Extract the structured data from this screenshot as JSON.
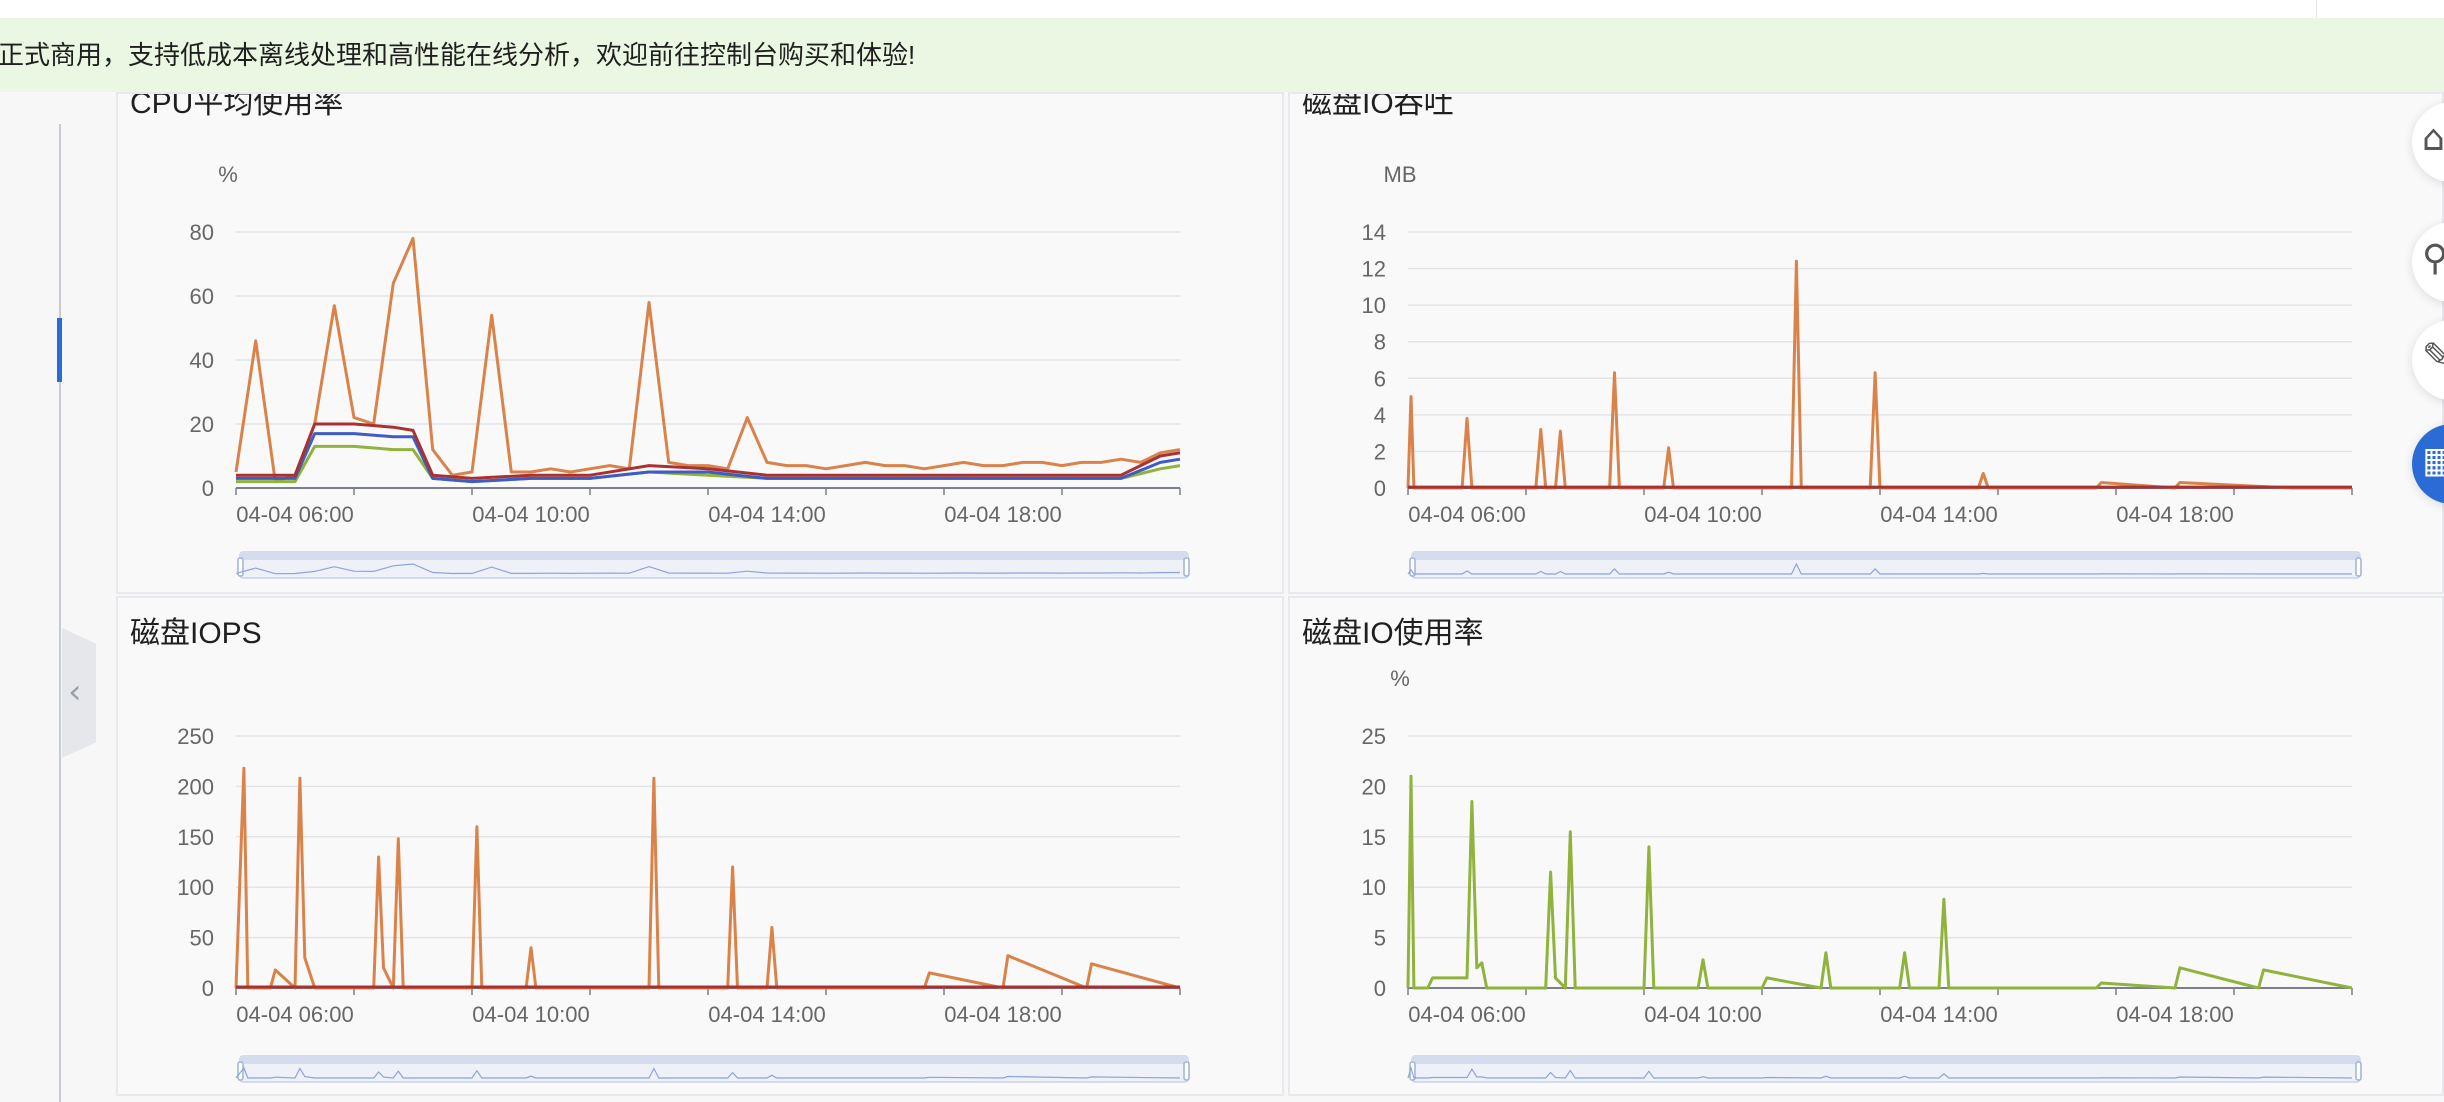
{
  "banner": {
    "text": "正式商用，支持低成本离线处理和高性能在线分析，欢迎前往控制台购买和体验!"
  },
  "panels": [
    {
      "title": "CPU平均使用率"
    },
    {
      "title": "磁盘IO吞吐"
    },
    {
      "title": "磁盘IOPS"
    },
    {
      "title": "磁盘IO使用率"
    }
  ],
  "right_tools": [
    "home-icon",
    "link-icon",
    "edit-icon",
    "grid-icon"
  ],
  "sidebar": {
    "collapse_icon": "chevron-left-icon"
  },
  "chart_data": [
    {
      "type": "line",
      "title": "CPU平均使用率",
      "ylabel": "%",
      "yticks": [
        "0",
        "20",
        "40",
        "60",
        "80"
      ],
      "ylim": [
        0,
        80
      ],
      "xticks": [
        "04-04 06:00",
        "04-04 10:00",
        "04-04 14:00",
        "04-04 18:00"
      ],
      "xlim": [
        "04-04 05:00",
        "04-04 21:00"
      ],
      "colors": [
        "#d9834a",
        "#8fb33c",
        "#3d5cc4",
        "#a83232"
      ],
      "series": [
        {
          "x": [
            "05:00",
            "05:20",
            "05:40",
            "06:00",
            "06:20",
            "06:40",
            "07:00",
            "07:20",
            "07:40",
            "08:00",
            "08:20",
            "08:40",
            "09:00",
            "09:20",
            "09:40",
            "10:00",
            "10:20",
            "10:40",
            "11:00",
            "11:20",
            "11:40",
            "12:00",
            "12:20",
            "12:40",
            "13:00",
            "13:20",
            "13:40",
            "14:00",
            "14:20",
            "14:40",
            "15:00",
            "15:20",
            "15:40",
            "16:00",
            "16:20",
            "16:40",
            "17:00",
            "17:20",
            "17:40",
            "18:00",
            "18:20",
            "18:40",
            "19:00",
            "19:20",
            "19:40",
            "20:00",
            "20:20",
            "20:40",
            "21:00"
          ],
          "values": [
            5,
            46,
            2,
            4,
            20,
            57,
            22,
            20,
            64,
            78,
            12,
            4,
            5,
            54,
            5,
            5,
            6,
            5,
            6,
            7,
            6,
            58,
            8,
            7,
            7,
            6,
            22,
            8,
            7,
            7,
            6,
            7,
            8,
            7,
            7,
            6,
            7,
            8,
            7,
            7,
            8,
            8,
            7,
            8,
            8,
            9,
            8,
            11,
            12
          ]
        },
        {
          "x": [
            "05:00",
            "06:00",
            "06:20",
            "07:00",
            "07:40",
            "08:00",
            "08:20",
            "09:00",
            "10:00",
            "11:00",
            "12:00",
            "13:00",
            "14:00",
            "15:00",
            "16:00",
            "17:00",
            "18:00",
            "19:00",
            "20:00",
            "20:40",
            "21:00"
          ],
          "values": [
            2,
            2,
            13,
            13,
            12,
            12,
            3,
            2,
            3,
            3,
            5,
            4,
            3,
            3,
            3,
            3,
            3,
            3,
            3,
            6,
            7
          ]
        },
        {
          "x": [
            "05:00",
            "06:00",
            "06:20",
            "07:00",
            "07:40",
            "08:00",
            "08:20",
            "09:00",
            "10:00",
            "11:00",
            "12:00",
            "13:00",
            "14:00",
            "15:00",
            "16:00",
            "17:00",
            "18:00",
            "19:00",
            "20:00",
            "20:40",
            "21:00"
          ],
          "values": [
            3,
            3,
            17,
            17,
            16,
            16,
            3,
            2,
            3,
            3,
            5,
            5,
            3,
            3,
            3,
            3,
            3,
            3,
            3,
            8,
            9
          ]
        },
        {
          "x": [
            "05:00",
            "06:00",
            "06:20",
            "07:00",
            "07:40",
            "08:00",
            "08:20",
            "09:00",
            "10:00",
            "11:00",
            "12:00",
            "13:00",
            "14:00",
            "15:00",
            "16:00",
            "17:00",
            "18:00",
            "19:00",
            "20:00",
            "20:40",
            "21:00"
          ],
          "values": [
            4,
            4,
            20,
            20,
            19,
            18,
            4,
            3,
            4,
            4,
            7,
            6,
            4,
            4,
            4,
            4,
            4,
            4,
            4,
            10,
            11
          ]
        }
      ]
    },
    {
      "type": "line",
      "title": "磁盘IO吞吐",
      "ylabel": "MB",
      "yticks": [
        "0",
        "2",
        "4",
        "6",
        "8",
        "10",
        "12",
        "14"
      ],
      "ylim": [
        0,
        14
      ],
      "xticks": [
        "04-04 06:00",
        "04-04 10:00",
        "04-04 14:00",
        "04-04 18:00"
      ],
      "xlim": [
        "04-04 05:00",
        "04-04 21:00"
      ],
      "colors": [
        "#d9834a",
        "#a83232"
      ],
      "series": [
        {
          "x": [
            "05:00",
            "05:03",
            "05:06",
            "05:55",
            "06:00",
            "06:05",
            "06:10",
            "07:10",
            "07:15",
            "07:20",
            "07:30",
            "07:35",
            "07:40",
            "08:25",
            "08:30",
            "08:35",
            "09:20",
            "09:25",
            "09:30",
            "11:30",
            "11:35",
            "11:40",
            "12:50",
            "12:55",
            "13:00",
            "14:40",
            "14:45",
            "14:50",
            "16:40",
            "16:45",
            "18:00",
            "18:05",
            "20:00",
            "21:00"
          ],
          "values": [
            0,
            5,
            0,
            0,
            3.8,
            0,
            0,
            0,
            3.2,
            0,
            0,
            3.1,
            0,
            0,
            6.3,
            0,
            0,
            2.2,
            0,
            0,
            12.4,
            0,
            0,
            6.3,
            0,
            0,
            0.8,
            0,
            0,
            0.3,
            0,
            0.3,
            0,
            0
          ]
        },
        {
          "x": [
            "05:00",
            "21:00"
          ],
          "values": [
            0.05,
            0.05
          ]
        }
      ]
    },
    {
      "type": "line",
      "title": "磁盘IOPS",
      "ylabel": "",
      "yticks": [
        "0",
        "50",
        "100",
        "150",
        "200",
        "250"
      ],
      "ylim": [
        0,
        250
      ],
      "xticks": [
        "04-04 06:00",
        "04-04 10:00",
        "04-04 14:00",
        "04-04 18:00"
      ],
      "xlim": [
        "04-04 05:00",
        "04-04 21:00"
      ],
      "colors": [
        "#d9834a",
        "#a83232"
      ],
      "series": [
        {
          "x": [
            "05:00",
            "05:08",
            "05:12",
            "05:35",
            "05:40",
            "06:00",
            "06:05",
            "06:10",
            "06:20",
            "07:20",
            "07:25",
            "07:30",
            "07:40",
            "07:45",
            "07:50",
            "09:00",
            "09:05",
            "09:10",
            "09:55",
            "10:00",
            "10:05",
            "12:00",
            "12:05",
            "12:10",
            "13:20",
            "13:25",
            "13:30",
            "14:00",
            "14:05",
            "14:10",
            "16:40",
            "16:45",
            "18:00",
            "18:05",
            "19:25",
            "19:30",
            "21:00"
          ],
          "values": [
            0,
            218,
            0,
            0,
            18,
            0,
            208,
            30,
            0,
            0,
            130,
            20,
            0,
            148,
            0,
            0,
            160,
            0,
            0,
            40,
            0,
            0,
            208,
            0,
            0,
            120,
            0,
            0,
            60,
            0,
            0,
            15,
            0,
            32,
            0,
            24,
            0
          ]
        },
        {
          "x": [
            "05:00",
            "21:00"
          ],
          "values": [
            1,
            1
          ]
        }
      ]
    },
    {
      "type": "line",
      "title": "磁盘IO使用率",
      "ylabel": "%",
      "yticks": [
        "0",
        "5",
        "10",
        "15",
        "20",
        "25"
      ],
      "ylim": [
        0,
        25
      ],
      "xticks": [
        "04-04 06:00",
        "04-04 10:00",
        "04-04 14:00",
        "04-04 18:00"
      ],
      "xlim": [
        "04-04 05:00",
        "04-04 21:00"
      ],
      "colors": [
        "#8fb33c"
      ],
      "series": [
        {
          "x": [
            "05:00",
            "05:03",
            "05:06",
            "05:20",
            "05:25",
            "06:00",
            "06:05",
            "06:10",
            "06:15",
            "06:20",
            "07:20",
            "07:25",
            "07:30",
            "07:40",
            "07:45",
            "07:50",
            "09:00",
            "09:05",
            "09:10",
            "09:55",
            "10:00",
            "10:05",
            "11:00",
            "11:05",
            "12:00",
            "12:05",
            "12:10",
            "13:20",
            "13:25",
            "13:30",
            "14:00",
            "14:05",
            "14:10",
            "16:40",
            "16:45",
            "18:00",
            "18:05",
            "19:25",
            "19:30",
            "21:00"
          ],
          "values": [
            0,
            21,
            0,
            0,
            1,
            1,
            18.5,
            2,
            2.5,
            0,
            0,
            11.5,
            1,
            0,
            15.5,
            0,
            0,
            14,
            0,
            0,
            2.8,
            0,
            0,
            1,
            0,
            3.5,
            0,
            0,
            3.5,
            0,
            0,
            8.8,
            0,
            0,
            0.5,
            0,
            2,
            0,
            1.8,
            0
          ]
        }
      ]
    }
  ]
}
